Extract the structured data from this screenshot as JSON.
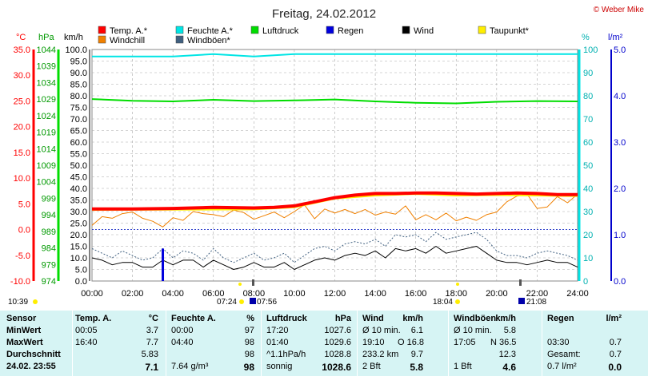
{
  "title": "Freitag, 24.02.2012",
  "copyright": "© Weber Mike",
  "colors": {
    "temp": "#ff0000",
    "humidity": "#00e5e5",
    "pressure": "#00dd00",
    "rain": "#0000dd",
    "wind": "#000000",
    "dewpoint": "#ffee00",
    "windchill": "#f08000",
    "gust": "#406080",
    "grid": "#999999"
  },
  "legend": [
    {
      "label": "Temp. A.*",
      "color": "#ff0000"
    },
    {
      "label": "Feuchte A.*",
      "color": "#00e5e5"
    },
    {
      "label": "Luftdruck",
      "color": "#00dd00"
    },
    {
      "label": "Regen",
      "color": "#0000dd"
    },
    {
      "label": "Wind",
      "color": "#000000"
    },
    {
      "label": "Taupunkt*",
      "color": "#ffee00"
    },
    {
      "label": "Windchill",
      "color": "#f08000"
    },
    {
      "label": "Windböen*",
      "color": "#406080"
    }
  ],
  "axis_units": {
    "temp": "°C",
    "pressure": "hPa",
    "wind": "km/h",
    "humidity": "%",
    "rain": "l/m²"
  },
  "chart_data": {
    "type": "line",
    "x_ticks": [
      "00:00",
      "02:00",
      "04:00",
      "06:00",
      "08:00",
      "10:00",
      "12:00",
      "14:00",
      "16:00",
      "18:00",
      "20:00",
      "22:00",
      "24:00"
    ],
    "temp_ticks": [
      "35.0",
      "30.0",
      "25.0",
      "20.0",
      "15.0",
      "10.0",
      "5.0",
      "0.0",
      "-5.0",
      "-10.0"
    ],
    "pressure_ticks": [
      "1044",
      "1039",
      "1034",
      "1029",
      "1024",
      "1019",
      "1014",
      "1009",
      "1004",
      "999",
      "994",
      "989",
      "984",
      "979",
      "974"
    ],
    "wind_ticks": [
      "100.0",
      "95.0",
      "90.0",
      "85.0",
      "80.0",
      "75.0",
      "70.0",
      "65.0",
      "60.0",
      "55.0",
      "50.0",
      "45.0",
      "40.0",
      "35.0",
      "30.0",
      "25.0",
      "20.0",
      "15.0",
      "10.0",
      "5.0",
      "0.0"
    ],
    "humidity_ticks": [
      "100",
      "90",
      "80",
      "70",
      "60",
      "50",
      "40",
      "30",
      "20",
      "10",
      "0"
    ],
    "rain_ticks": [
      "5.0",
      "4.0",
      "3.0",
      "2.0",
      "1.0",
      "0.0"
    ],
    "ranges": {
      "temp": [
        -10,
        35
      ],
      "pressure": [
        974,
        1044
      ],
      "wind": [
        0,
        100
      ],
      "humidity": [
        0,
        100
      ],
      "rain": [
        0,
        5
      ]
    },
    "series": [
      {
        "name": "Temp. A.*",
        "axis": "temp",
        "x": [
          0,
          2,
          4,
          6,
          8,
          9,
          10,
          11,
          12,
          13,
          14,
          15,
          16,
          17,
          18,
          19,
          20,
          21,
          22,
          23,
          24
        ],
        "y": [
          4.0,
          4.0,
          4.1,
          4.3,
          4.2,
          4.3,
          4.6,
          5.4,
          6.2,
          6.7,
          7.0,
          7.0,
          7.1,
          7.1,
          7.0,
          6.9,
          7.0,
          7.1,
          7.0,
          6.8,
          6.8
        ]
      },
      {
        "name": "Taupunkt*",
        "axis": "temp",
        "x": [
          0,
          8,
          10,
          12,
          14,
          16,
          18,
          20,
          22,
          24
        ],
        "y": [
          3.8,
          3.9,
          4.3,
          6.0,
          6.6,
          6.9,
          6.6,
          6.7,
          6.6,
          6.5
        ]
      },
      {
        "name": "Windchill",
        "axis": "temp",
        "x": [
          0,
          0.5,
          1,
          1.5,
          2,
          2.5,
          3,
          3.5,
          4,
          4.5,
          5,
          5.5,
          6,
          6.5,
          7,
          7.5,
          8,
          8.5,
          9,
          9.5,
          10,
          10.5,
          11,
          11.5,
          12,
          12.5,
          13,
          13.5,
          14,
          14.5,
          15,
          15.5,
          16,
          16.5,
          17,
          17.5,
          18,
          18.5,
          19,
          19.5,
          20,
          20.5,
          21,
          21.5,
          22,
          22.5,
          23,
          23.5,
          24
        ],
        "y": [
          0.8,
          2.5,
          2.2,
          3.1,
          3.4,
          2.2,
          1.6,
          0.5,
          2.3,
          1.8,
          3.5,
          3.1,
          2.9,
          2.5,
          3.8,
          3.3,
          2.0,
          2.7,
          3.4,
          2.3,
          3.5,
          4.8,
          2.1,
          4.0,
          3.2,
          3.9,
          3.1,
          3.9,
          2.8,
          3.4,
          3.0,
          4.6,
          1.9,
          2.9,
          1.9,
          3.2,
          1.7,
          2.4,
          1.8,
          2.9,
          3.4,
          5.4,
          6.5,
          6.9,
          4.1,
          4.4,
          6.4,
          5.2,
          6.9
        ]
      },
      {
        "name": "Feuchte A.*",
        "axis": "humidity",
        "x": [
          0,
          2,
          4,
          6,
          8,
          10,
          12,
          14,
          16,
          18,
          20,
          22,
          24
        ],
        "y": [
          97,
          97,
          97,
          98,
          97,
          98,
          98,
          98,
          98,
          98,
          98,
          98,
          98
        ]
      },
      {
        "name": "Luftdruck",
        "axis": "pressure",
        "x": [
          0,
          2,
          4,
          6,
          8,
          10,
          12,
          14,
          16,
          18,
          20,
          22,
          24
        ],
        "y": [
          1029.0,
          1028.5,
          1028.3,
          1028.8,
          1028.4,
          1028.6,
          1028.9,
          1028.3,
          1027.9,
          1027.7,
          1028.2,
          1028.4,
          1028.3
        ]
      },
      {
        "name": "Wind",
        "axis": "wind",
        "x": [
          0,
          0.5,
          1,
          1.5,
          2,
          2.5,
          3,
          3.5,
          4,
          4.5,
          5,
          5.5,
          6,
          6.5,
          7,
          7.5,
          8,
          8.5,
          9,
          9.5,
          10,
          10.5,
          11,
          11.5,
          12,
          12.5,
          13,
          13.5,
          14,
          14.5,
          15,
          15.5,
          16,
          16.5,
          17,
          17.5,
          18,
          18.5,
          19,
          19.5,
          20,
          20.5,
          21,
          21.5,
          22,
          22.5,
          23,
          23.5,
          24
        ],
        "y": [
          10,
          9,
          7,
          8,
          8,
          6,
          6,
          9,
          7,
          9,
          9,
          6,
          9,
          7,
          5,
          6,
          8,
          6,
          6,
          8,
          5,
          7,
          9,
          10,
          9,
          11,
          12,
          11,
          13,
          10,
          14,
          13,
          14,
          12,
          15,
          12,
          13,
          14,
          15,
          12,
          9,
          8,
          8,
          7,
          8,
          9,
          8,
          8,
          6
        ]
      },
      {
        "name": "Windböen*",
        "axis": "wind",
        "x": [
          0,
          0.5,
          1,
          1.5,
          2,
          2.5,
          3,
          3.5,
          4,
          4.5,
          5,
          5.5,
          6,
          6.5,
          7,
          7.5,
          8,
          8.5,
          9,
          9.5,
          10,
          10.5,
          11,
          11.5,
          12,
          12.5,
          13,
          13.5,
          14,
          14.5,
          15,
          15.5,
          16,
          16.5,
          17,
          17.5,
          18,
          18.5,
          19,
          19.5,
          20,
          20.5,
          21,
          21.5,
          22,
          22.5,
          23,
          23.5,
          24
        ],
        "y": [
          14,
          12,
          10,
          13,
          11,
          9,
          10,
          14,
          10,
          13,
          12,
          9,
          14,
          10,
          8,
          10,
          12,
          9,
          10,
          12,
          8,
          11,
          14,
          15,
          13,
          16,
          17,
          16,
          18,
          15,
          20,
          19,
          20,
          17,
          21,
          18,
          19,
          20,
          21,
          18,
          13,
          11,
          11,
          10,
          12,
          13,
          12,
          11,
          9
        ]
      },
      {
        "name": "Regen",
        "axis": "rain",
        "type": "bar",
        "x": [
          3.5
        ],
        "y": [
          0.7
        ]
      }
    ],
    "gridlines": true
  },
  "sun": {
    "left_time": "10:39",
    "sunrise": "07:24",
    "sunrise_icon": "07:56",
    "noon": "18:04",
    "sunset": "21:08"
  },
  "table": {
    "rows": [
      [
        "Sensor",
        "Temp. A.",
        "°C",
        "Feuchte A.",
        "%",
        "Luftdruck",
        "hPa",
        "Wind",
        "km/h",
        "Windböen",
        "km/h",
        "Regen",
        "l/m²"
      ],
      [
        "MinWert",
        "00:05",
        "3.7",
        "00:00",
        "97",
        "17:20",
        "1027.6",
        "Ø 10 min.",
        "6.1",
        "Ø 10 min.",
        "5.8",
        "",
        ""
      ],
      [
        "MaxWert",
        "16:40",
        "7.7",
        "04:40",
        "98",
        "01:40",
        "1029.6",
        "19:10",
        "O 16.8",
        "17:05",
        "N 36.5",
        "03:30",
        "0.7"
      ],
      [
        "Durchschnitt",
        "",
        "5.83",
        "",
        "98",
        "^1.1hPa/h",
        "1028.8",
        "233.2 km",
        "9.7",
        "",
        "12.3",
        "Gesamt:",
        "0.7"
      ],
      [
        "24.02. 23:55",
        "",
        "7.1",
        "7.64 g/m³",
        "98",
        "sonnig",
        "1028.6",
        "2 Bft",
        "5.8",
        "1 Bft",
        "4.6",
        "0.7 l/m²",
        "0.0"
      ]
    ]
  }
}
